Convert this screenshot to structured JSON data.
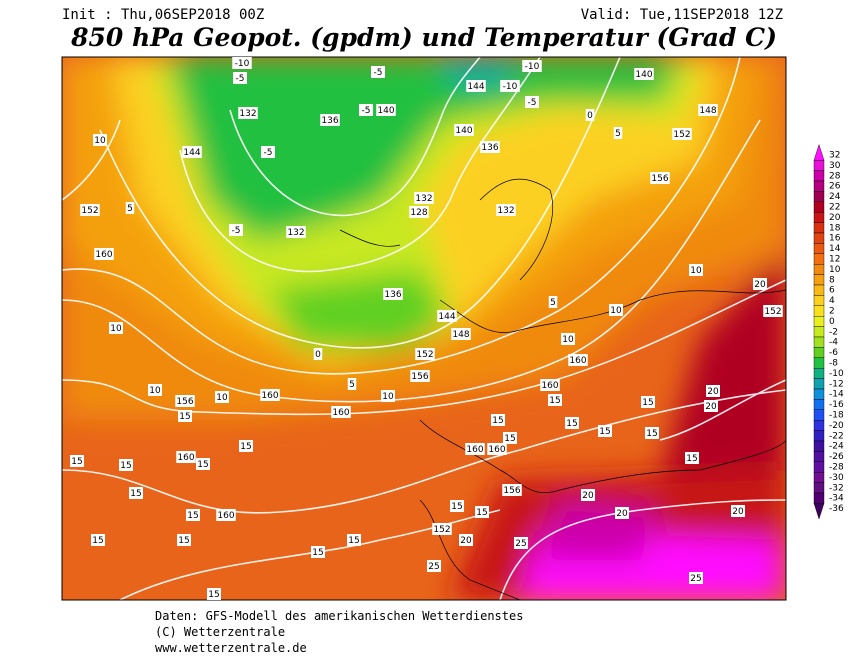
{
  "header": {
    "init": "Init : Thu,06SEP2018 00Z",
    "valid": "Valid: Tue,11SEP2018 12Z",
    "title": "850 hPa Geopot. (gpdm) und Temperatur (Grad C)"
  },
  "colorbar": {
    "values": [
      32,
      30,
      28,
      26,
      24,
      22,
      20,
      18,
      16,
      14,
      12,
      10,
      8,
      6,
      4,
      2,
      0,
      -2,
      -4,
      -6,
      -8,
      -10,
      -12,
      -14,
      -16,
      -18,
      -20,
      -22,
      -24,
      -26,
      -28,
      -30,
      -32,
      -34,
      -36
    ],
    "colors": [
      "#ff10ff",
      "#e810d8",
      "#cc00aa",
      "#b40080",
      "#a00050",
      "#b00020",
      "#c81414",
      "#d83010",
      "#e04410",
      "#e85a10",
      "#f07010",
      "#f08a10",
      "#f4a010",
      "#f8b818",
      "#fcd020",
      "#f8e020",
      "#e8f020",
      "#c8e820",
      "#a0e020",
      "#60d020",
      "#20c040",
      "#10b080",
      "#10a0b0",
      "#1090d8",
      "#1070f0",
      "#2050f0",
      "#3030e0",
      "#3020c0",
      "#4010a0",
      "#5010a0",
      "#6010a0",
      "#701090",
      "#601080",
      "#500070",
      "#400060"
    ]
  },
  "contour_labels": [
    "-10",
    "-5",
    "-5",
    "-10",
    "140",
    "-5",
    "0",
    "148",
    "144",
    "-10",
    "132",
    "136",
    "-5",
    "140",
    "144",
    "-5",
    "152",
    "136",
    "140",
    "5",
    "156",
    "132",
    "128",
    "132",
    "-5",
    "132",
    "136",
    "144",
    "148",
    "152",
    "156",
    "0",
    "5",
    "10",
    "160",
    "160",
    "160",
    "10",
    "10",
    "156",
    "15",
    "10",
    "160",
    "152",
    "10",
    "5",
    "10",
    "10",
    "5",
    "10",
    "20",
    "152",
    "20",
    "20",
    "160",
    "15",
    "15",
    "15",
    "15",
    "15",
    "15",
    "15",
    "160",
    "160",
    "15",
    "156",
    "20",
    "20",
    "20",
    "15",
    "15",
    "152",
    "20",
    "25",
    "25",
    "25",
    "160",
    "15",
    "15",
    "15",
    "15",
    "15",
    "15",
    "160",
    "15",
    "15",
    "15",
    "15",
    "15"
  ],
  "footer": [
    "Daten: GFS-Modell des amerikanischen Wetterdienstes",
    "(C) Wetterzentrale",
    "www.wetterzentrale.de"
  ]
}
